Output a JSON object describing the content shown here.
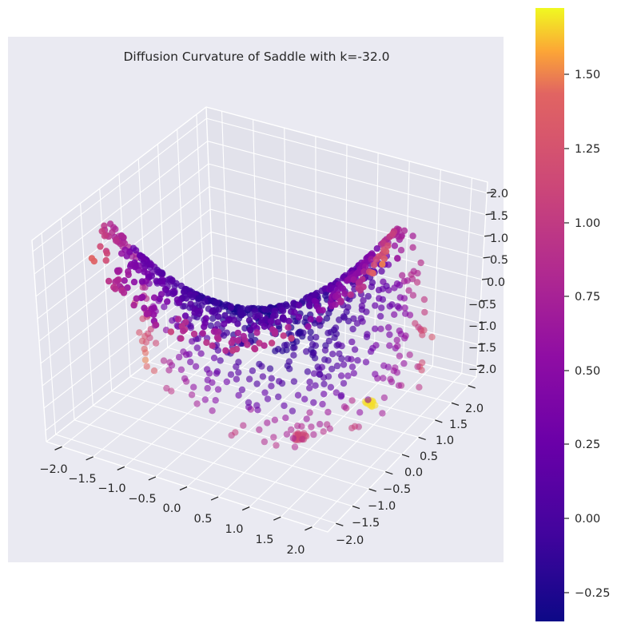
{
  "chart_data": {
    "type": "scatter",
    "projection": "3d",
    "title": "Diffusion Curvature of Saddle with k=-32.0",
    "surface": "z = x^2 - y^2 (saddle)",
    "axes": {
      "x": {
        "range": [
          -2.3,
          2.3
        ],
        "ticks": [
          "−2.0",
          "−1.5",
          "−1.0",
          "−0.5",
          "0.0",
          "0.5",
          "1.0",
          "1.5",
          "2.0"
        ]
      },
      "y": {
        "range": [
          -2.3,
          2.3
        ],
        "ticks": [
          "−2.0",
          "−1.5",
          "−1.0",
          "−0.5",
          "0.0",
          "0.5",
          "1.0",
          "1.5",
          "2.0"
        ]
      },
      "z": {
        "range": [
          -2.3,
          2.3
        ],
        "ticks": [
          "−2.0",
          "−1.5",
          "−1.0",
          "−0.5",
          "0.0",
          "0.5",
          "1.0",
          "1.5",
          "2.0"
        ]
      }
    },
    "grid": true,
    "colormap": "plasma",
    "colorbar": {
      "range": [
        -0.35,
        1.75
      ],
      "ticks": [
        "−0.25",
        "0.00",
        "0.25",
        "0.50",
        "0.75",
        "1.00",
        "1.25",
        "1.50"
      ]
    },
    "points": [
      {
        "x": -1.9,
        "y": -0.3,
        "z": 1.7,
        "c": 1.25
      },
      {
        "x": -1.7,
        "y": 0.5,
        "z": 1.4,
        "c": 1.05
      },
      {
        "x": -1.5,
        "y": -0.8,
        "z": 1.2,
        "c": 0.9
      },
      {
        "x": -1.2,
        "y": 0.2,
        "z": 0.8,
        "c": 0.55
      },
      {
        "x": -0.9,
        "y": -0.5,
        "z": 0.4,
        "c": 0.3
      },
      {
        "x": -0.5,
        "y": 0.1,
        "z": 0.1,
        "c": 0.05
      },
      {
        "x": 0.0,
        "y": 0.0,
        "z": 0.0,
        "c": -0.2
      },
      {
        "x": 0.4,
        "y": -0.6,
        "z": -0.2,
        "c": 0.0
      },
      {
        "x": 0.9,
        "y": 0.3,
        "z": 0.6,
        "c": 0.3
      },
      {
        "x": 1.3,
        "y": -0.2,
        "z": 1.1,
        "c": 0.6
      },
      {
        "x": 1.7,
        "y": 0.4,
        "z": 1.4,
        "c": 0.95
      },
      {
        "x": 1.9,
        "y": -0.4,
        "z": 1.7,
        "c": 1.2
      },
      {
        "x": 0.2,
        "y": -1.5,
        "z": -1.9,
        "c": 1.1
      },
      {
        "x": -0.4,
        "y": -1.8,
        "z": -1.6,
        "c": 1.05
      },
      {
        "x": 0.5,
        "y": 1.9,
        "z": -1.6,
        "c": 1.7
      },
      {
        "x": -0.3,
        "y": 1.5,
        "z": -1.8,
        "c": 0.8
      },
      {
        "x": 0.8,
        "y": -1.0,
        "z": -0.5,
        "c": 0.4
      },
      {
        "x": -0.8,
        "y": 1.1,
        "z": -0.6,
        "c": 0.35
      }
    ]
  }
}
